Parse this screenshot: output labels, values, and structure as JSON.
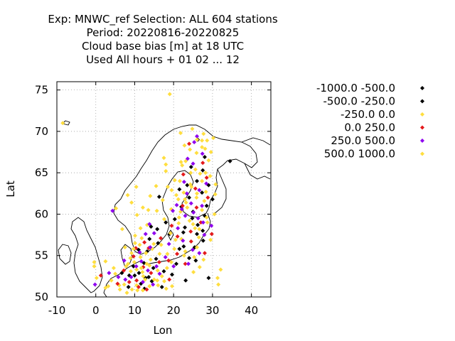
{
  "chart_data": {
    "type": "scatter",
    "title_lines": [
      "Exp: MNWC_ref   Selection: ALL    604 stations",
      "Period: 20220816-20220825",
      "Cloud base bias [m] at  18 UTC",
      "Used  All hours  + 01 02 ... 12"
    ],
    "xlabel": "Lon",
    "ylabel": "Lat",
    "xlim": [
      -10,
      45
    ],
    "ylim": [
      50,
      76
    ],
    "xticks": [
      -10,
      0,
      10,
      20,
      30,
      40
    ],
    "yticks": [
      50,
      55,
      60,
      65,
      70,
      75
    ],
    "grid": true,
    "legend_position": "right",
    "series": [
      {
        "name": "-1000.0 -500.0",
        "color": "#000000",
        "points": [
          [
            29.0,
            52.3
          ],
          [
            34.5,
            66.4
          ],
          [
            27.5,
            65.3
          ],
          [
            23.5,
            63.5
          ],
          [
            22.0,
            60.9
          ],
          [
            27.3,
            62.6
          ],
          [
            25.0,
            60.3
          ],
          [
            28.5,
            61.0
          ],
          [
            24.8,
            59.5
          ],
          [
            26.2,
            58.7
          ],
          [
            22.5,
            57.8
          ],
          [
            27.6,
            56.8
          ],
          [
            21.5,
            55.8
          ],
          [
            24.0,
            54.7
          ],
          [
            18.0,
            59.0
          ],
          [
            16.0,
            56.5
          ],
          [
            13.2,
            55.5
          ],
          [
            12.4,
            54.1
          ],
          [
            11.1,
            52.9
          ],
          [
            13.6,
            52.4
          ],
          [
            14.8,
            53.5
          ],
          [
            9.7,
            53.7
          ],
          [
            17.0,
            51.2
          ],
          [
            20.7,
            54.0
          ],
          [
            8.6,
            52.6
          ],
          [
            25.4,
            56.0
          ],
          [
            14.2,
            58.5
          ],
          [
            16.3,
            62.1
          ],
          [
            12.5,
            51.0
          ],
          [
            23.1,
            52.0
          ]
        ]
      },
      {
        "name": "-500.0 -250.0",
        "color": "#000000",
        "points": [
          [
            28.0,
            66.9
          ],
          [
            26.2,
            69.0
          ],
          [
            24.5,
            65.7
          ],
          [
            26.0,
            64.0
          ],
          [
            21.5,
            63.0
          ],
          [
            29.0,
            63.5
          ],
          [
            24.0,
            62.0
          ],
          [
            28.0,
            59.8
          ],
          [
            26.0,
            57.6
          ],
          [
            22.6,
            56.1
          ],
          [
            25.7,
            54.4
          ],
          [
            19.0,
            57.6
          ],
          [
            15.8,
            58.2
          ],
          [
            12.8,
            52.3
          ],
          [
            14.4,
            51.9
          ],
          [
            10.0,
            52.6
          ],
          [
            11.6,
            51.6
          ],
          [
            8.4,
            51.2
          ],
          [
            6.7,
            52.9
          ],
          [
            11.0,
            55.7
          ],
          [
            17.5,
            53.1
          ],
          [
            19.6,
            52.7
          ],
          [
            15.5,
            54.6
          ],
          [
            13.8,
            57.0
          ],
          [
            20.3,
            59.4
          ],
          [
            22.9,
            58.4
          ],
          [
            27.5,
            58.0
          ],
          [
            30.0,
            61.8
          ]
        ]
      },
      {
        "name": "-250.0 0.0",
        "color": "#ffde3f",
        "points": [
          [
            -8.5,
            71.0
          ],
          [
            19.0,
            74.5
          ],
          [
            21.8,
            69.8
          ],
          [
            22.8,
            68.3
          ],
          [
            27.3,
            68.1
          ],
          [
            28.6,
            68.9
          ],
          [
            24.2,
            67.8
          ],
          [
            29.0,
            66.5
          ],
          [
            17.5,
            66.8
          ],
          [
            18.0,
            66.0
          ],
          [
            18.0,
            65.2
          ],
          [
            25.6,
            65.4
          ],
          [
            27.3,
            64.0
          ],
          [
            30.7,
            62.4
          ],
          [
            26.0,
            62.5
          ],
          [
            23.2,
            61.4
          ],
          [
            21.8,
            60.3
          ],
          [
            19.4,
            60.6
          ],
          [
            28.5,
            59.6
          ],
          [
            27.3,
            60.5
          ],
          [
            25.5,
            58.3
          ],
          [
            26.5,
            57.2
          ],
          [
            22.0,
            57.0
          ],
          [
            23.0,
            55.5
          ],
          [
            25.3,
            54.8
          ],
          [
            26.7,
            53.6
          ],
          [
            31.3,
            52.3
          ],
          [
            32.1,
            53.3
          ],
          [
            31.5,
            51.5
          ],
          [
            14.0,
            62.2
          ],
          [
            13.5,
            60.5
          ],
          [
            13.2,
            58.7
          ],
          [
            11.8,
            57.1
          ],
          [
            10.1,
            56.5
          ],
          [
            9.2,
            55.3
          ],
          [
            12.0,
            53.0
          ],
          [
            12.7,
            52.1
          ],
          [
            11.5,
            54.8
          ],
          [
            14.5,
            55.8
          ],
          [
            15.9,
            53.2
          ],
          [
            17.0,
            52.5
          ],
          [
            18.3,
            53.5
          ],
          [
            19.4,
            54.2
          ],
          [
            16.4,
            55.2
          ],
          [
            13.1,
            54.0
          ],
          [
            10.5,
            53.3
          ],
          [
            8.9,
            54.7
          ],
          [
            7.8,
            53.7
          ],
          [
            6.0,
            51.4
          ],
          [
            5.0,
            52.8
          ],
          [
            4.0,
            52.0
          ],
          [
            3.2,
            51.3
          ],
          [
            2.5,
            54.3
          ],
          [
            -0.4,
            53.7
          ],
          [
            7.5,
            56.0
          ],
          [
            11.5,
            58.3
          ],
          [
            9.2,
            61.4
          ],
          [
            5.2,
            60.7
          ],
          [
            10.6,
            59.9
          ],
          [
            15.5,
            63.4
          ],
          [
            17.2,
            61.7
          ],
          [
            19.5,
            62.9
          ],
          [
            20.3,
            64.1
          ],
          [
            29.6,
            67.5
          ],
          [
            28.2,
            65.0
          ],
          [
            30.5,
            60.0
          ],
          [
            13.8,
            51.3
          ],
          [
            12.1,
            50.8
          ],
          [
            10.5,
            51.4
          ],
          [
            9.3,
            50.9
          ],
          [
            16.0,
            51.4
          ],
          [
            15.0,
            52.1
          ],
          [
            18.1,
            51.0
          ],
          [
            14.1,
            54.5
          ],
          [
            12.9,
            55.3
          ],
          [
            9.9,
            54.2
          ],
          [
            7.3,
            51.5
          ],
          [
            24.1,
            59.2
          ],
          [
            20.5,
            56.9
          ],
          [
            26.0,
            56.0
          ],
          [
            23.5,
            60.8
          ],
          [
            27.9,
            61.6
          ],
          [
            21.2,
            61.8
          ],
          [
            24.6,
            63.3
          ],
          [
            22.2,
            65.9
          ],
          [
            26.8,
            64.9
          ]
        ]
      },
      {
        "name": "0.0 250.0",
        "color": "#e41a1c",
        "points": [
          [
            24.0,
            68.5
          ],
          [
            27.5,
            66.2
          ],
          [
            28.5,
            64.4
          ],
          [
            22.5,
            64.8
          ],
          [
            25.6,
            63.1
          ],
          [
            28.8,
            62.0
          ],
          [
            22.3,
            61.0
          ],
          [
            27.0,
            59.0
          ],
          [
            25.9,
            60.8
          ],
          [
            29.8,
            57.6
          ],
          [
            28.0,
            55.3
          ],
          [
            24.5,
            56.7
          ],
          [
            21.0,
            57.3
          ],
          [
            19.5,
            58.6
          ],
          [
            16.7,
            57.1
          ],
          [
            13.6,
            55.9
          ],
          [
            12.2,
            53.6
          ],
          [
            10.5,
            52.0
          ],
          [
            9.7,
            54.9
          ],
          [
            14.2,
            52.9
          ],
          [
            16.3,
            54.2
          ],
          [
            18.7,
            54.4
          ],
          [
            8.6,
            51.8
          ],
          [
            11.0,
            51.2
          ],
          [
            13.1,
            50.9
          ],
          [
            7.2,
            53.2
          ],
          [
            5.6,
            51.6
          ],
          [
            1.3,
            52.6
          ],
          [
            10.3,
            55.9
          ],
          [
            12.5,
            56.6
          ],
          [
            18.9,
            52.1
          ],
          [
            23.0,
            54.0
          ],
          [
            20.9,
            55.2
          ],
          [
            24.4,
            57.9
          ]
        ]
      },
      {
        "name": "250.0 500.0",
        "color": "#8f00ef",
        "points": [
          [
            26.0,
            69.4
          ],
          [
            25.3,
            68.7
          ],
          [
            23.6,
            66.7
          ],
          [
            27.4,
            67.3
          ],
          [
            25.0,
            66.1
          ],
          [
            26.6,
            62.9
          ],
          [
            23.4,
            62.5
          ],
          [
            25.1,
            60.2
          ],
          [
            27.3,
            61.0
          ],
          [
            26.3,
            59.5
          ],
          [
            29.7,
            58.6
          ],
          [
            27.6,
            59.0
          ],
          [
            23.0,
            59.8
          ],
          [
            21.1,
            58.3
          ],
          [
            22.4,
            56.8
          ],
          [
            24.9,
            55.7
          ],
          [
            26.6,
            55.3
          ],
          [
            23.8,
            54.0
          ],
          [
            18.8,
            56.4
          ],
          [
            15.0,
            57.7
          ],
          [
            14.0,
            56.0
          ],
          [
            13.4,
            53.2
          ],
          [
            11.7,
            54.3
          ],
          [
            10.4,
            53.7
          ],
          [
            12.1,
            51.8
          ],
          [
            14.7,
            51.5
          ],
          [
            16.4,
            52.8
          ],
          [
            17.9,
            54.8
          ],
          [
            20.0,
            53.7
          ],
          [
            9.1,
            52.4
          ],
          [
            7.6,
            52.1
          ],
          [
            5.8,
            52.4
          ],
          [
            3.4,
            52.9
          ],
          [
            -0.2,
            51.5
          ],
          [
            4.3,
            60.4
          ],
          [
            7.3,
            54.4
          ],
          [
            11.3,
            55.4
          ],
          [
            13.8,
            58.8
          ],
          [
            19.8,
            60.4
          ],
          [
            22.1,
            60.6
          ],
          [
            24.5,
            61.3
          ],
          [
            28.4,
            63.7
          ],
          [
            22.7,
            63.9
          ],
          [
            27.9,
            57.5
          ],
          [
            15.6,
            53.7
          ],
          [
            12.8,
            57.6
          ],
          [
            20.8,
            61.1
          ]
        ]
      },
      {
        "name": "500.0 1000.0",
        "color": "#ffde3f",
        "points": [
          [
            24.8,
            70.3
          ],
          [
            26.0,
            69.0
          ],
          [
            27.7,
            69.7
          ],
          [
            27.3,
            68.9
          ],
          [
            23.1,
            66.4
          ],
          [
            25.9,
            67.4
          ],
          [
            24.4,
            65.0
          ],
          [
            21.6,
            64.0
          ],
          [
            29.4,
            64.6
          ],
          [
            24.3,
            63.6
          ],
          [
            20.7,
            62.3
          ],
          [
            18.5,
            63.3
          ],
          [
            22.9,
            61.8
          ],
          [
            21.4,
            59.6
          ],
          [
            25.0,
            58.8
          ],
          [
            26.6,
            58.2
          ],
          [
            28.7,
            59.0
          ],
          [
            29.5,
            56.9
          ],
          [
            27.7,
            54.5
          ],
          [
            25.1,
            53.0
          ],
          [
            22.7,
            55.0
          ],
          [
            20.2,
            55.8
          ],
          [
            18.4,
            55.2
          ],
          [
            16.8,
            56.3
          ],
          [
            14.9,
            56.4
          ],
          [
            10.1,
            57.4
          ],
          [
            11.3,
            56.3
          ],
          [
            9.7,
            55.8
          ],
          [
            8.3,
            54.0
          ],
          [
            9.0,
            53.1
          ],
          [
            11.7,
            53.5
          ],
          [
            13.8,
            53.8
          ],
          [
            15.8,
            52.0
          ],
          [
            17.6,
            51.9
          ],
          [
            19.6,
            51.3
          ],
          [
            12.2,
            52.5
          ],
          [
            10.7,
            50.8
          ],
          [
            8.0,
            50.5
          ],
          [
            6.2,
            50.9
          ],
          [
            2.5,
            51.1
          ],
          [
            4.6,
            53.5
          ],
          [
            0.2,
            52.3
          ],
          [
            -0.4,
            54.2
          ],
          [
            6.8,
            58.2
          ],
          [
            8.2,
            62.3
          ],
          [
            10.4,
            63.3
          ],
          [
            12.1,
            60.8
          ],
          [
            15.7,
            60.4
          ],
          [
            17.6,
            59.4
          ],
          [
            19.2,
            57.7
          ],
          [
            21.3,
            58.9
          ],
          [
            22.6,
            62.6
          ],
          [
            25.9,
            62.0
          ],
          [
            28.3,
            62.7
          ],
          [
            30.8,
            63.6
          ],
          [
            21.9,
            66.3
          ],
          [
            28.1,
            67.9
          ],
          [
            30.2,
            69.2
          ]
        ]
      }
    ]
  }
}
